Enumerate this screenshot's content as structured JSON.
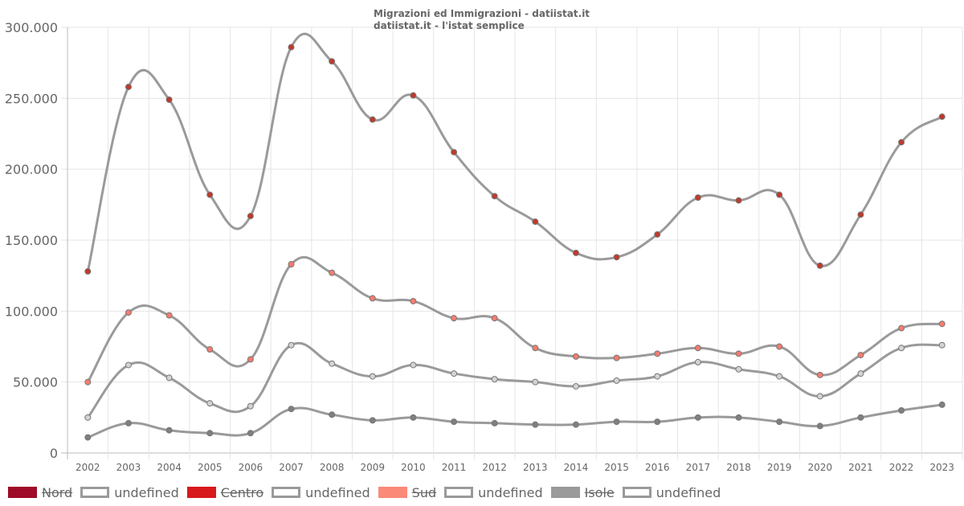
{
  "chart_data": {
    "type": "line",
    "title": "Migrazioni ed Immigrazioni - datiistat.it",
    "subtitle": "datiistat.it - l'istat semplice",
    "xlabel": "",
    "ylabel": "",
    "ylim": [
      0,
      300000
    ],
    "y_ticks": [
      "0",
      "50.000",
      "100.000",
      "150.000",
      "200.000",
      "250.000",
      "300.000"
    ],
    "y_tick_values": [
      0,
      50000,
      100000,
      150000,
      200000,
      250000,
      300000
    ],
    "categories": [
      "2002",
      "2003",
      "2004",
      "2005",
      "2006",
      "2007",
      "2008",
      "2009",
      "2010",
      "2011",
      "2012",
      "2013",
      "2014",
      "2015",
      "2016",
      "2017",
      "2018",
      "2019",
      "2020",
      "2021",
      "2022",
      "2023"
    ],
    "grid": true,
    "legend_position": "bottom-left",
    "series": [
      {
        "name": "Nord",
        "color": "#c0392b",
        "values": [
          128000,
          258000,
          249000,
          182000,
          167000,
          286000,
          276000,
          235000,
          252000,
          212000,
          181000,
          163000,
          141000,
          138000,
          154000,
          180000,
          178000,
          182000,
          132000,
          168000,
          219000,
          237000
        ]
      },
      {
        "name": "Centro",
        "color": "#f47c6e",
        "values": [
          50000,
          99000,
          97000,
          73000,
          66000,
          133000,
          127000,
          109000,
          107000,
          95000,
          95000,
          74000,
          68000,
          67000,
          70000,
          74000,
          70000,
          75000,
          55000,
          69000,
          88000,
          91000
        ]
      },
      {
        "name": "Sud",
        "color": "#d3d3d3",
        "values": [
          25000,
          62000,
          53000,
          35000,
          33000,
          76000,
          63000,
          54000,
          62000,
          56000,
          52000,
          50000,
          47000,
          51000,
          54000,
          64000,
          59000,
          54000,
          40000,
          56000,
          74000,
          76000
        ]
      },
      {
        "name": "Isole",
        "color": "#7f7f7f",
        "values": [
          11000,
          21000,
          16000,
          14000,
          14000,
          31000,
          27000,
          23000,
          25000,
          22000,
          21000,
          20000,
          20000,
          22000,
          22000,
          25000,
          25000,
          22000,
          19000,
          25000,
          30000,
          34000
        ]
      }
    ]
  },
  "legend": [
    {
      "label": "Nord",
      "fill": "#9e0a27",
      "border": "#9e0a27",
      "struck": true
    },
    {
      "label": "undefined",
      "fill": "#ffffff",
      "border": "#9a9a9a",
      "struck": false
    },
    {
      "label": "Centro",
      "fill": "#d7191c",
      "border": "#d7191c",
      "struck": true
    },
    {
      "label": "undefined",
      "fill": "#ffffff",
      "border": "#9a9a9a",
      "struck": false
    },
    {
      "label": "Sud",
      "fill": "#fb8a79",
      "border": "#fb8a79",
      "struck": true
    },
    {
      "label": "undefined",
      "fill": "#ffffff",
      "border": "#9a9a9a",
      "struck": false
    },
    {
      "label": "Isole",
      "fill": "#9a9a9a",
      "border": "#9a9a9a",
      "struck": true
    },
    {
      "label": "undefined",
      "fill": "#ffffff",
      "border": "#9a9a9a",
      "struck": false
    }
  ],
  "line_color": "#9a9a9a"
}
